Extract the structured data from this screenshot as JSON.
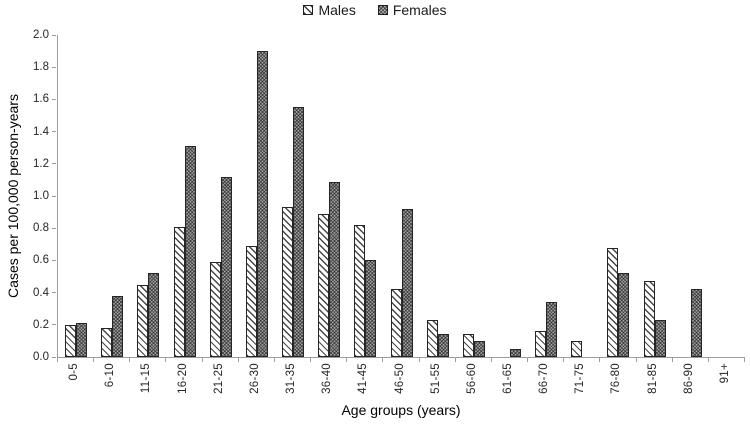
{
  "figure": {
    "type_label": "epidemiology incidence bar chart"
  },
  "chart_data": {
    "type": "bar",
    "title": "",
    "xlabel": "Age groups (years)",
    "ylabel": "Cases per 100,000 person-years",
    "ylim": [
      0,
      2.0
    ],
    "ytick_step": 0.2,
    "yticks": [
      "0.0",
      "0.2",
      "0.4",
      "0.6",
      "0.8",
      "1.0",
      "1.2",
      "1.4",
      "1.6",
      "1.8",
      "2.0"
    ],
    "grid": false,
    "legend_position": "top-center",
    "background": "#ffffff",
    "axis_color": "#9d9d9d",
    "bar_border_color": "#262626",
    "categories": [
      "0-5",
      "6-10",
      "11-15",
      "16-20",
      "21-25",
      "26-30",
      "31-35",
      "36-40",
      "41-45",
      "46-50",
      "51-55",
      "56-60",
      "61-65",
      "66-70",
      "71-75",
      "76-80",
      "81-85",
      "86-90",
      "91+"
    ],
    "series": [
      {
        "name": "Males",
        "pattern": "diagonal-hatch",
        "fill": "#ffffff",
        "hatch_color": "#474747",
        "values": [
          0.2,
          0.18,
          0.45,
          0.81,
          0.59,
          0.69,
          0.93,
          0.89,
          0.82,
          0.42,
          0.23,
          0.14,
          0,
          0.16,
          0.1,
          0.68,
          0.47,
          0,
          0
        ]
      },
      {
        "name": "Females",
        "pattern": "dot-grid",
        "fill": "#a6a6a6",
        "hatch_color": "#262626",
        "values": [
          0.21,
          0.38,
          0.52,
          1.31,
          1.12,
          1.9,
          1.55,
          1.09,
          0.6,
          0.92,
          0.14,
          0.1,
          0.05,
          0.34,
          0,
          0.52,
          0.23,
          0.42,
          0
        ]
      }
    ]
  }
}
